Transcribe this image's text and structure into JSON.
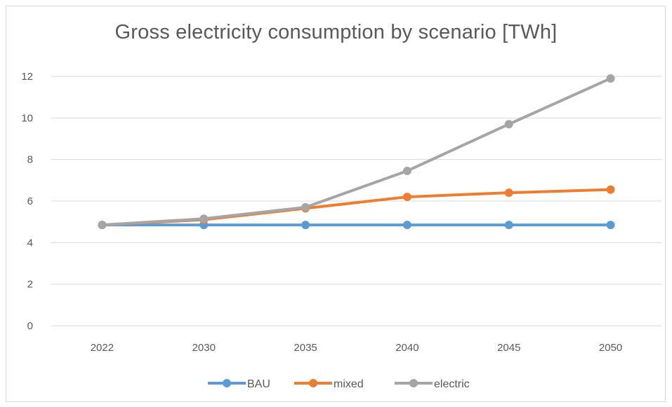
{
  "chart_data": {
    "type": "line",
    "title": "Gross electricity consumption by scenario [TWh]",
    "xlabel": "",
    "ylabel": "",
    "categories": [
      "2022",
      "2030",
      "2035",
      "2040",
      "2045",
      "2050"
    ],
    "ylim": [
      0,
      12
    ],
    "yticks": [
      0,
      2,
      4,
      6,
      8,
      10,
      12
    ],
    "grid": true,
    "legend_position": "bottom",
    "series": [
      {
        "name": "BAU",
        "color": "#5b9bd5",
        "values": [
          4.85,
          4.85,
          4.85,
          4.85,
          4.85,
          4.85
        ]
      },
      {
        "name": "mixed",
        "color": "#ed7d31",
        "values": [
          4.85,
          5.1,
          5.65,
          6.2,
          6.4,
          6.55
        ]
      },
      {
        "name": "electric",
        "color": "#a5a5a5",
        "values": [
          4.85,
          5.15,
          5.7,
          7.45,
          9.7,
          11.9
        ]
      }
    ]
  }
}
